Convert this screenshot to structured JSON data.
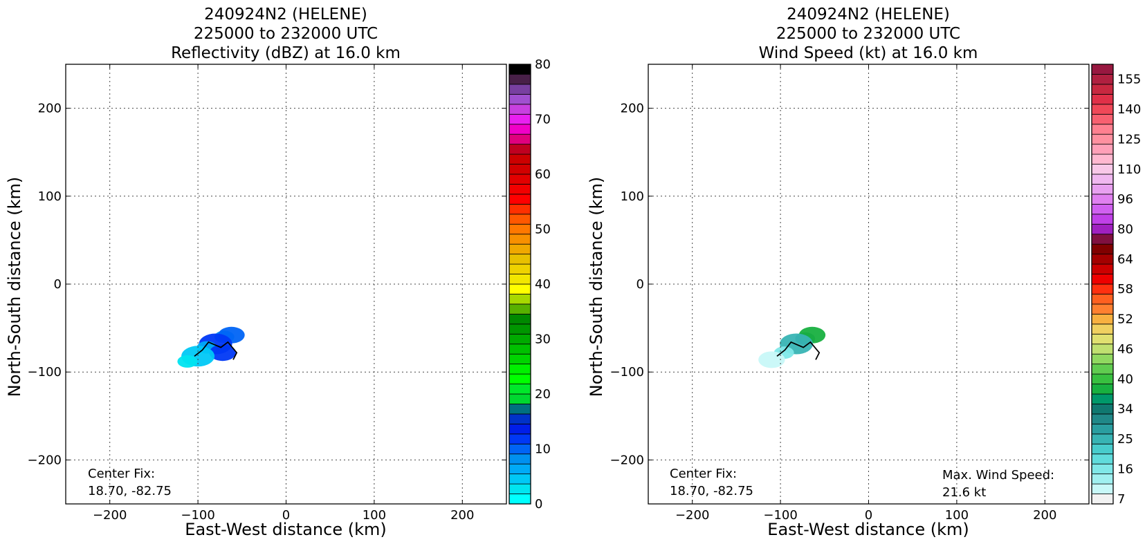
{
  "chart_data": [
    {
      "type": "heatmap",
      "title": [
        "240924N2 (HELENE)",
        "225000 to 232000 UTC",
        "Reflectivity (dBZ) at 16.0 km"
      ],
      "xlabel": "East-West distance (km)",
      "ylabel": "North-South distance (km)",
      "xlim": [
        -250,
        250
      ],
      "ylim": [
        -250,
        250
      ],
      "xticks": [
        -200,
        -100,
        0,
        100,
        200
      ],
      "yticks": [
        200,
        100,
        0,
        -100,
        -200
      ],
      "grid": true,
      "annotation": [
        "Center Fix:",
        "18.70, -82.75"
      ],
      "colorbar": {
        "min": 0,
        "max": 80,
        "levels": 40,
        "tick_values": [
          0,
          10,
          20,
          30,
          40,
          50,
          60,
          70,
          80
        ],
        "tick_labels": [
          "0",
          "10",
          "20",
          "30",
          "40",
          "50",
          "60",
          "70",
          "80"
        ],
        "colors": [
          "#00ffff",
          "#00e4f0",
          "#00c8f6",
          "#00aaf7",
          "#0090f0",
          "#0064f5",
          "#0038f5",
          "#001ee8",
          "#0032c8",
          "#007080",
          "#00d830",
          "#00e82a",
          "#00ff00",
          "#00f000",
          "#00d400",
          "#00c000",
          "#00aa00",
          "#009600",
          "#008800",
          "#58b000",
          "#a8d800",
          "#ffff00",
          "#f2e600",
          "#eed200",
          "#e8c000",
          "#f0a800",
          "#f89000",
          "#ff7800",
          "#ff5800",
          "#ff3000",
          "#ff0000",
          "#f20000",
          "#e20000",
          "#d20000",
          "#cc0000",
          "#c00020",
          "#e0007e",
          "#f000c8",
          "#e820f0",
          "#c840e0",
          "#a050d0",
          "#7840a0",
          "#482048",
          "#000000"
        ]
      },
      "echo_region": {
        "description_values": "shaded reflectivity echoes",
        "cells": [
          {
            "x": -70,
            "y": -60,
            "value": 8
          },
          {
            "x": -62,
            "y": -58,
            "value": 10
          },
          {
            "x": -80,
            "y": -68,
            "value": 12
          },
          {
            "x": -90,
            "y": -72,
            "value": 6
          },
          {
            "x": -72,
            "y": -78,
            "value": 11
          },
          {
            "x": -100,
            "y": -82,
            "value": 4
          },
          {
            "x": -112,
            "y": -88,
            "value": 2
          }
        ]
      },
      "track": [
        [
          -104,
          -82
        ],
        [
          -95,
          -75
        ],
        [
          -88,
          -66
        ],
        [
          -74,
          -72
        ],
        [
          -66,
          -66
        ],
        [
          -56,
          -78
        ],
        [
          -60,
          -86
        ]
      ]
    },
    {
      "type": "heatmap",
      "title": [
        "240924N2 (HELENE)",
        "225000 to 232000 UTC",
        "Wind Speed (kt) at 16.0 km"
      ],
      "xlabel": "East-West distance (km)",
      "ylabel": "North-South distance (km)",
      "xlim": [
        -250,
        250
      ],
      "ylim": [
        -250,
        250
      ],
      "xticks": [
        -200,
        -100,
        0,
        100,
        200
      ],
      "yticks": [
        200,
        100,
        0,
        -100,
        -200
      ],
      "grid": true,
      "annotation": [
        "Center Fix:",
        "18.70, -82.75"
      ],
      "annotation_right": [
        "Max. Wind Speed:",
        "21.6 kt"
      ],
      "colorbar": {
        "min": 7,
        "max": 160,
        "tick_labels": [
          "7",
          "16",
          "25",
          "34",
          "40",
          "46",
          "52",
          "58",
          "64",
          "80",
          "96",
          "110",
          "125",
          "140",
          "155"
        ],
        "colors": [
          "#f2f2f2",
          "#c8f8f8",
          "#a0f0f0",
          "#80e8e8",
          "#60dcdc",
          "#48cccc",
          "#38b4b4",
          "#2a9ea0",
          "#208888",
          "#107870",
          "#00986a",
          "#18b040",
          "#38c040",
          "#60cc50",
          "#90d860",
          "#c0e070",
          "#e0e070",
          "#f0d060",
          "#f8b040",
          "#ff8030",
          "#ff6020",
          "#ff3010",
          "#ee0000",
          "#cc0000",
          "#a40000",
          "#800000",
          "#801040",
          "#a020c0",
          "#c040e8",
          "#d060f0",
          "#e080f0",
          "#e8a0f0",
          "#f0b8f0",
          "#f8c8e8",
          "#ffb8d0",
          "#ffa0b8",
          "#ff90a0",
          "#ff8090",
          "#f86070",
          "#f04858",
          "#e03048",
          "#c82840",
          "#b02040",
          "#981840"
        ]
      },
      "wind_cells": [
        {
          "x": -72,
          "y": -62,
          "value": 18
        },
        {
          "x": -64,
          "y": -58,
          "value": 20
        },
        {
          "x": -82,
          "y": -68,
          "value": 14
        },
        {
          "x": -96,
          "y": -78,
          "value": 10
        },
        {
          "x": -110,
          "y": -86,
          "value": 8
        }
      ],
      "track": [
        [
          -104,
          -82
        ],
        [
          -95,
          -75
        ],
        [
          -88,
          -66
        ],
        [
          -74,
          -72
        ],
        [
          -66,
          -66
        ],
        [
          -56,
          -78
        ],
        [
          -60,
          -86
        ]
      ]
    }
  ]
}
